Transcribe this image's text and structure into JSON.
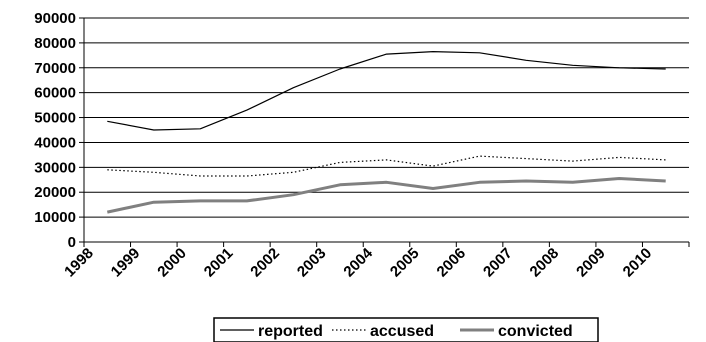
{
  "chart_data": {
    "type": "line",
    "title": "",
    "xlabel": "",
    "ylabel": "",
    "ylim": [
      0,
      90000
    ],
    "y_ticks": [
      "0",
      "10000",
      "20000",
      "30000",
      "40000",
      "50000",
      "60000",
      "70000",
      "80000",
      "90000"
    ],
    "categories": [
      "1998",
      "1999",
      "2000",
      "2001",
      "2002",
      "2003",
      "2004",
      "2005",
      "2006",
      "2007",
      "2008",
      "2009",
      "2010"
    ],
    "grid": "horizontal",
    "legend_position": "bottom",
    "series": [
      {
        "name": "reported",
        "style": "solid-thin",
        "color": "#000000",
        "values": [
          48500,
          45000,
          45500,
          53000,
          62000,
          69500,
          75500,
          76500,
          76000,
          73000,
          71000,
          70000,
          69500
        ]
      },
      {
        "name": "accused",
        "style": "dotted",
        "color": "#000000",
        "values": [
          29000,
          28000,
          26500,
          26500,
          28000,
          32000,
          33000,
          30500,
          34500,
          33500,
          32500,
          34000,
          33000
        ]
      },
      {
        "name": "convicted",
        "style": "solid-thick",
        "color": "#808080",
        "values": [
          12000,
          16000,
          16500,
          16500,
          19000,
          23000,
          24000,
          21500,
          24000,
          24500,
          24000,
          25500,
          24500
        ]
      }
    ]
  }
}
